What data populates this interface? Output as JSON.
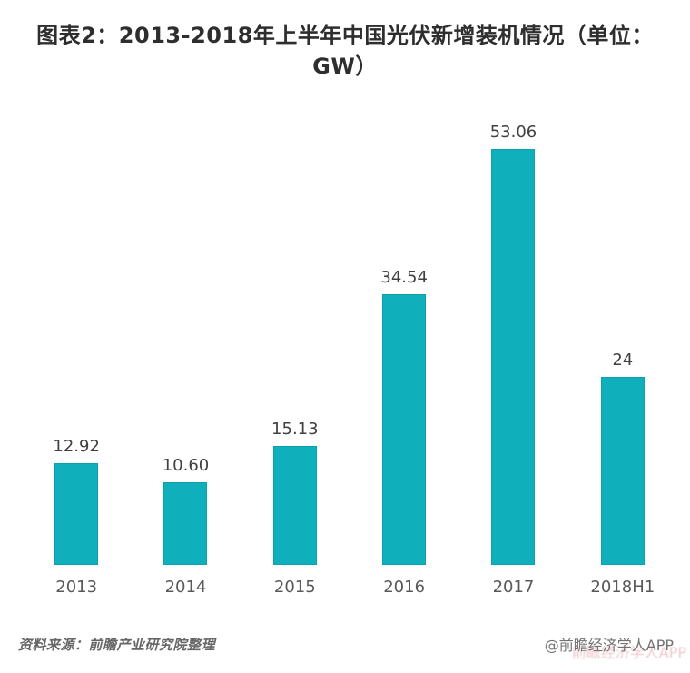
{
  "title": {
    "line1": "图表2：2013-2018年上半年中国光伏新增装机情况（单位：",
    "line2": "GW）"
  },
  "chart_data": {
    "type": "bar",
    "title": "图表2：2013-2018年上半年中国光伏新增装机情况（单位：GW）",
    "categories": [
      "2013",
      "2014",
      "2015",
      "2016",
      "2017",
      "2018H1"
    ],
    "values": [
      12.92,
      10.6,
      15.13,
      34.54,
      53.06,
      24
    ],
    "value_labels": [
      "12.92",
      "10.60",
      "15.13",
      "34.54",
      "53.06",
      "24"
    ],
    "xlabel": "",
    "ylabel": "",
    "unit": "GW",
    "ylim": [
      0,
      60
    ],
    "grid": false,
    "legend": false,
    "bar_color": "#0FAFBC",
    "value_label_color": "#404040",
    "axis_label_color": "#595959"
  },
  "footer": {
    "source": "资料来源：前瞻产业研究院整理",
    "attribution": "@前瞻经济学人APP",
    "watermark": "前瞻经济学人APP"
  }
}
